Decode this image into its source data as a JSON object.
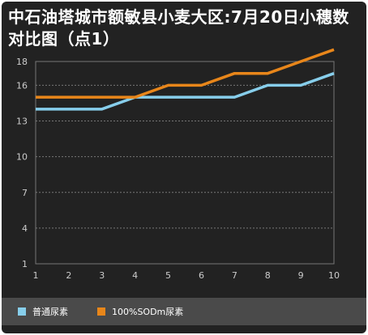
{
  "chart_data": {
    "type": "line",
    "title": "中石油塔城市额敏县小麦大区:7月20日小穗数对比图（点1）",
    "x": [
      1,
      2,
      3,
      4,
      5,
      6,
      7,
      8,
      9,
      10
    ],
    "yticks": [
      1,
      4,
      7,
      10,
      13,
      16,
      18
    ],
    "ylim": [
      1,
      18
    ],
    "grid": true,
    "legend_position": "bottom",
    "series": [
      {
        "name": "普通尿素",
        "color": "#87ceeb",
        "values": [
          14,
          14,
          14,
          15,
          15,
          15,
          15,
          16,
          16,
          17
        ]
      },
      {
        "name": "100%SODm尿素",
        "color": "#e8861a",
        "values": [
          15,
          15,
          15,
          15,
          16,
          16,
          17,
          17,
          18,
          19
        ]
      }
    ]
  }
}
